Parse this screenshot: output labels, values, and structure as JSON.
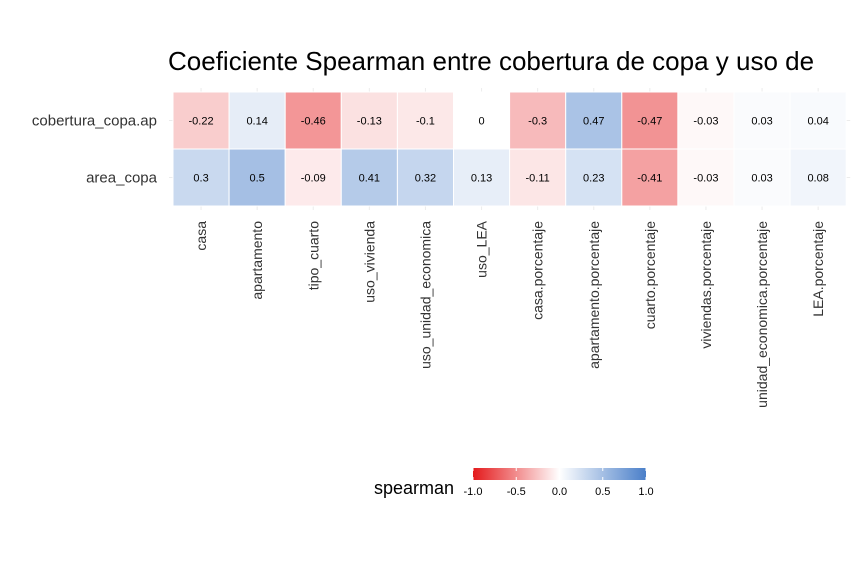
{
  "chart_data": {
    "type": "heatmap",
    "title": "Coeficiente Spearman entre  cobertura de copa y uso de",
    "rows": [
      "cobertura_copa.ap",
      "area_copa"
    ],
    "columns": [
      "casa",
      "apartamento",
      "tipo_cuarto",
      "uso_vivienda",
      "uso_unidad_economica",
      "uso_LEA",
      "casa.porcentaje",
      "apartamento.porcentaje",
      "cuarto.porcentaje",
      "viviendas.porcentaje",
      "unidad_economica.porcentaje",
      "LEA.porcentaje"
    ],
    "values": [
      [
        -0.22,
        0.14,
        -0.46,
        -0.13,
        -0.1,
        0,
        -0.3,
        0.47,
        -0.47,
        -0.03,
        0.03,
        0.04
      ],
      [
        0.3,
        0.5,
        -0.09,
        0.41,
        0.32,
        0.13,
        -0.11,
        0.23,
        -0.41,
        -0.03,
        0.03,
        0.08
      ]
    ],
    "value_labels": [
      [
        "-0.22",
        "0.14",
        "-0.46",
        "-0.13",
        "-0.1",
        "0",
        "-0.3",
        "0.47",
        "-0.47",
        "-0.03",
        "0.03",
        "0.04"
      ],
      [
        "0.3",
        "0.5",
        "-0.09",
        "0.41",
        "0.32",
        "0.13",
        "-0.11",
        "0.23",
        "-0.41",
        "-0.03",
        "0.03",
        "0.08"
      ]
    ],
    "legend": {
      "title": "spearman",
      "placement": "bottom",
      "range": [
        -1.0,
        1.0
      ],
      "ticks": [
        -1.0,
        -0.5,
        0.0,
        0.5,
        1.0
      ],
      "tick_labels": [
        "-1.0",
        "-0.5",
        "0.0",
        "0.5",
        "1.0"
      ]
    },
    "colors": {
      "low": "#e41a1c",
      "mid": "#ffffff",
      "high": "#4a7fc9"
    },
    "grid": true
  }
}
